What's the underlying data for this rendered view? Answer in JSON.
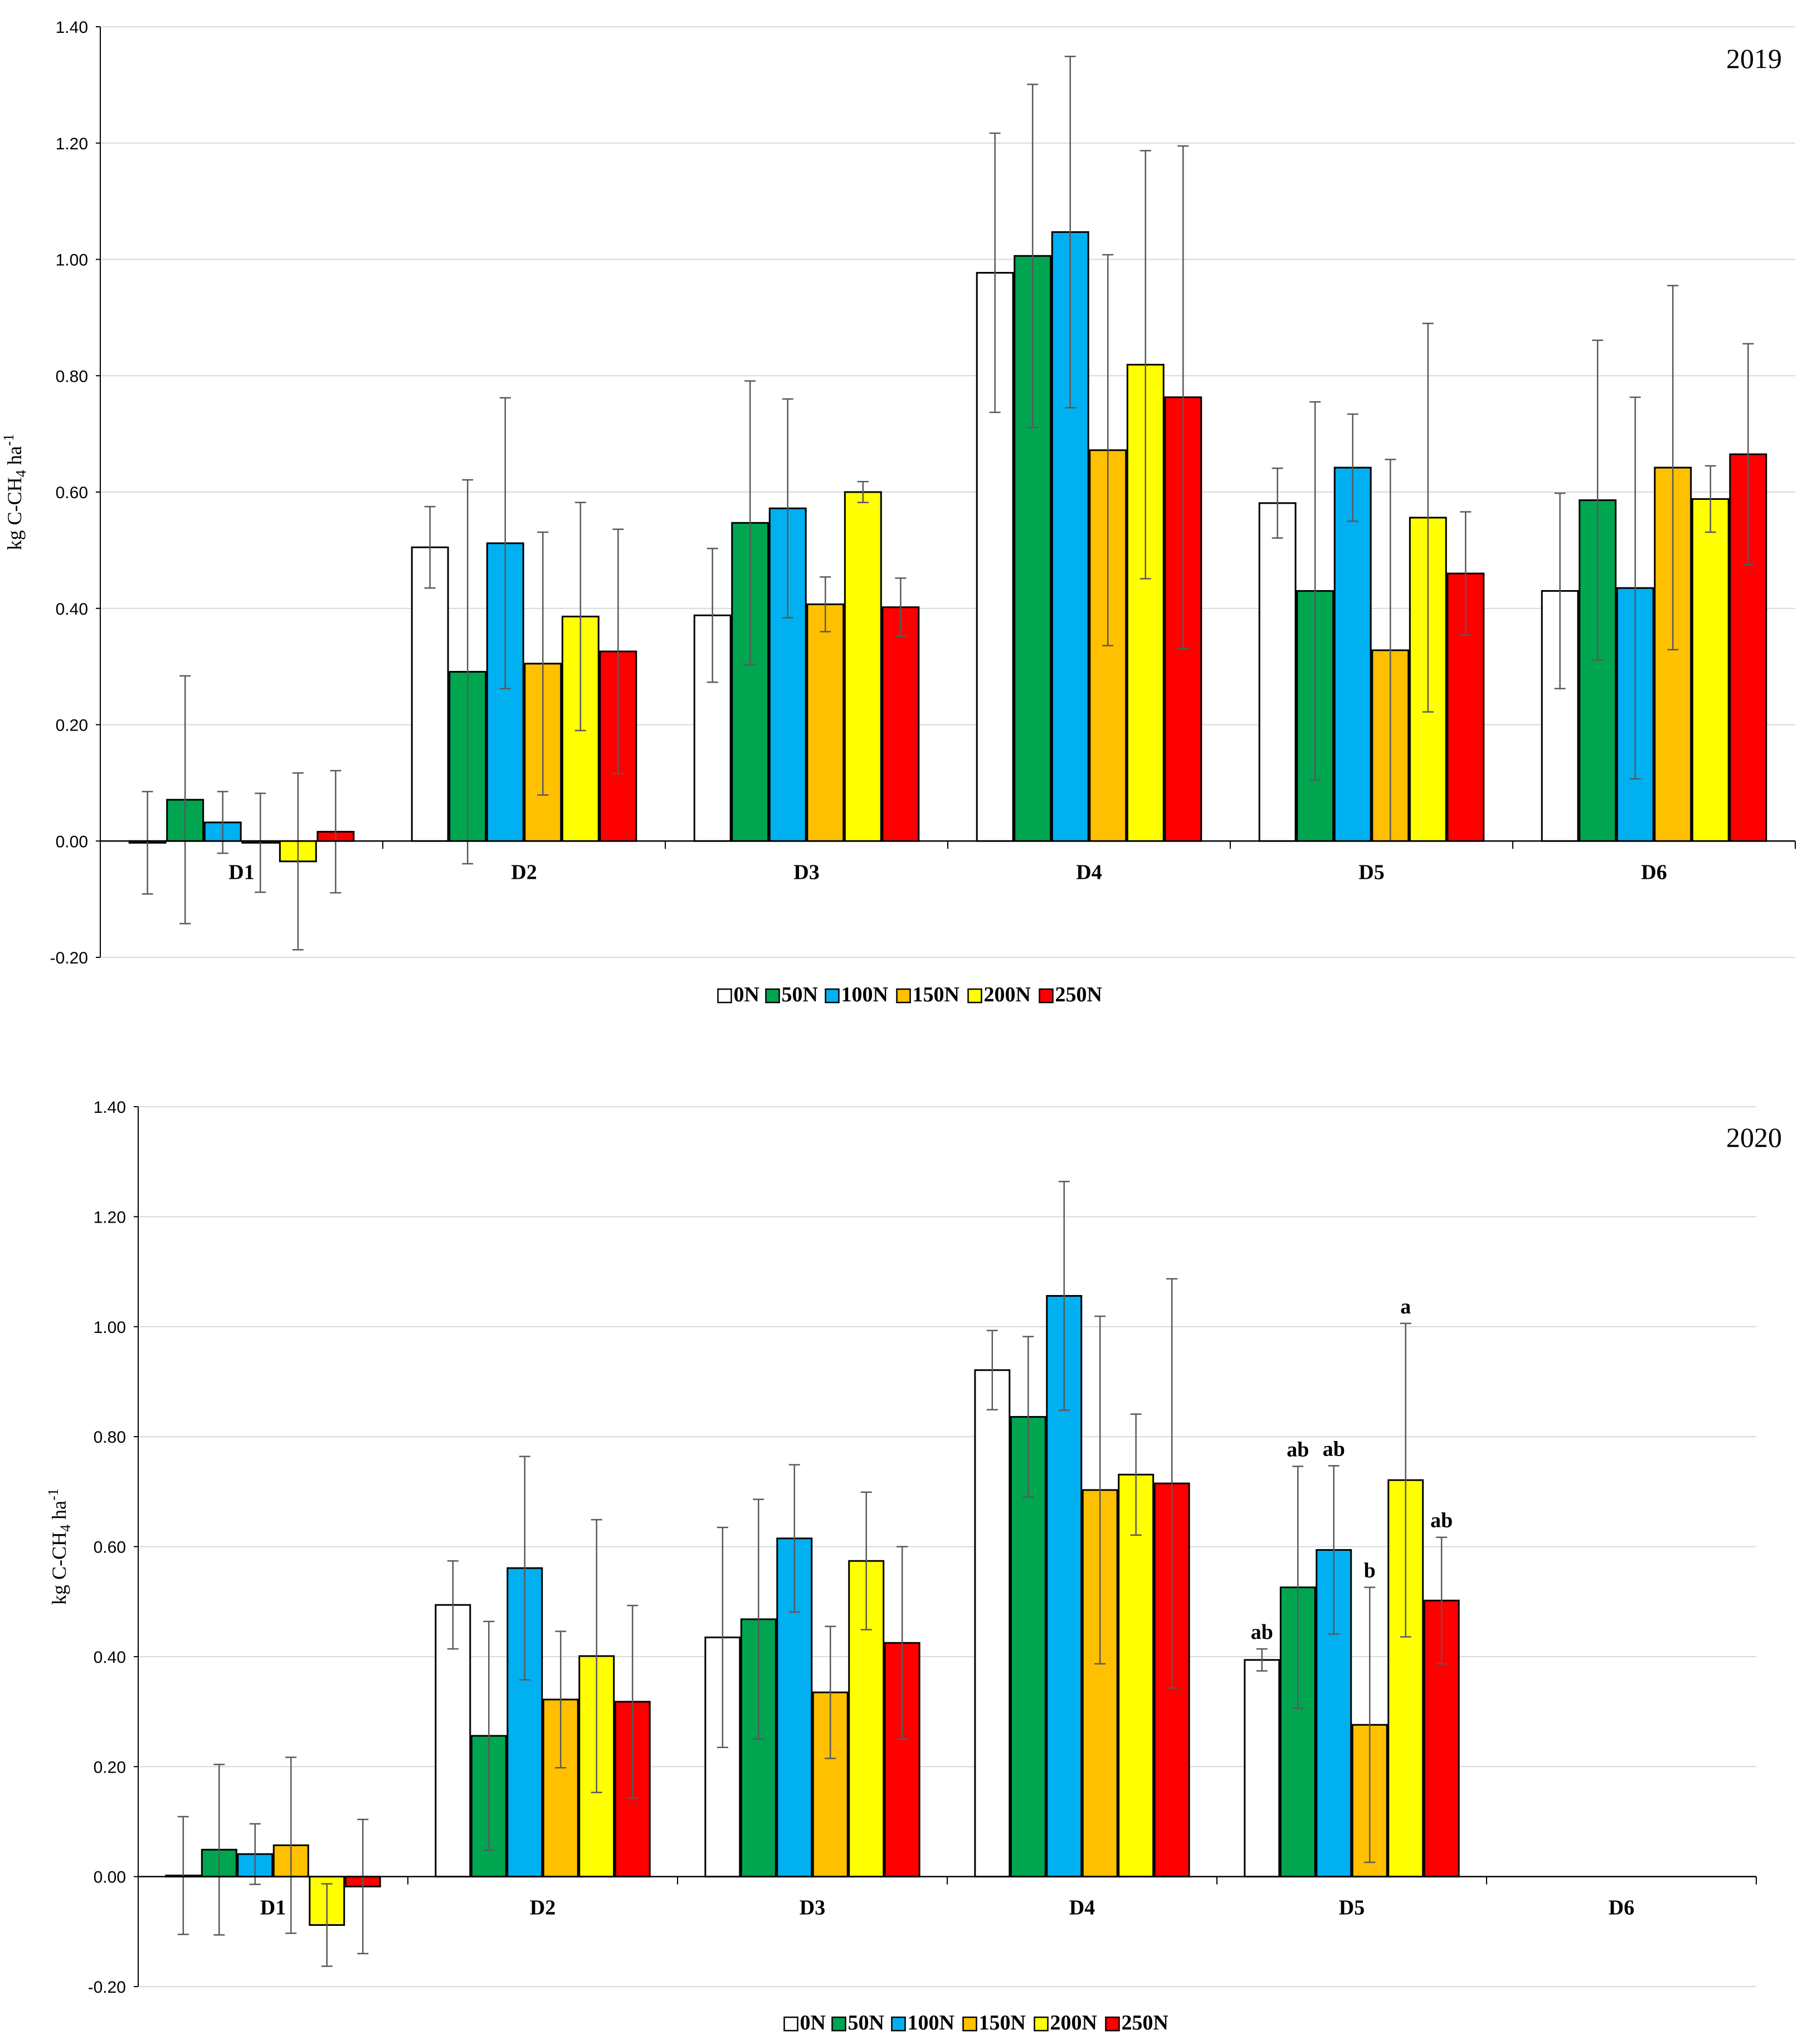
{
  "colors": {
    "0N": "#ffffff",
    "50N": "#00a550",
    "100N": "#00b0f0",
    "150N": "#ffc000",
    "200N": "#ffff00",
    "250N": "#ff0000",
    "grid": "#d9d9d9",
    "errorbar": "#595959"
  },
  "chart_data": [
    {
      "type": "bar",
      "title": "2019",
      "ylabel": "kg C-CH4 ha-1",
      "ylabel_parts": {
        "main": "kg C-CH",
        "sub": "4",
        "unit": " ha",
        "sup": "-1"
      },
      "ylim": [
        -0.2,
        1.4
      ],
      "yticks": [
        "-0.20",
        "0.00",
        "0.20",
        "0.40",
        "0.60",
        "0.80",
        "1.00",
        "1.20",
        "1.40"
      ],
      "ytick_values": [
        -0.2,
        0.0,
        0.2,
        0.4,
        0.6,
        0.8,
        1.0,
        1.2,
        1.4
      ],
      "categories": [
        "D1",
        "D2",
        "D3",
        "D4",
        "D5",
        "D6"
      ],
      "series": [
        {
          "name": "0N",
          "values": [
            -0.003,
            0.505,
            0.388,
            0.977,
            0.581,
            0.43
          ],
          "errors": [
            0.088,
            0.07,
            0.115,
            0.24,
            0.06,
            0.168
          ]
        },
        {
          "name": "50N",
          "values": [
            0.071,
            0.291,
            0.547,
            1.006,
            0.43,
            0.586
          ],
          "errors": [
            0.213,
            0.33,
            0.244,
            0.295,
            0.325,
            0.275
          ]
        },
        {
          "name": "100N",
          "values": [
            0.032,
            0.512,
            0.572,
            1.047,
            0.642,
            0.435
          ],
          "errors": [
            0.053,
            0.25,
            0.188,
            0.302,
            0.092,
            0.328
          ]
        },
        {
          "name": "150N",
          "values": [
            -0.003,
            0.305,
            0.407,
            0.672,
            0.328,
            0.642
          ],
          "errors": [
            0.085,
            0.226,
            0.047,
            0.336,
            0.328,
            0.313
          ]
        },
        {
          "name": "200N",
          "values": [
            -0.035,
            0.386,
            0.6,
            0.819,
            0.556,
            0.588
          ],
          "errors": [
            0.152,
            0.196,
            0.018,
            0.368,
            0.334,
            0.057
          ]
        },
        {
          "name": "250N",
          "values": [
            0.016,
            0.326,
            0.402,
            0.763,
            0.46,
            0.665
          ],
          "errors": [
            0.105,
            0.21,
            0.05,
            0.432,
            0.106,
            0.19
          ]
        }
      ],
      "labels": null
    },
    {
      "type": "bar",
      "title": "2020",
      "ylabel": "kg C-CH4 ha-1",
      "ylabel_parts": {
        "main": "kg C-CH",
        "sub": "4",
        "unit": " ha",
        "sup": "-1"
      },
      "ylim": [
        -0.2,
        1.4
      ],
      "yticks": [
        "-0.20",
        "0.00",
        "0.20",
        "0.40",
        "0.60",
        "0.80",
        "1.00",
        "1.20",
        "1.40"
      ],
      "ytick_values": [
        -0.2,
        0.0,
        0.2,
        0.4,
        0.6,
        0.8,
        1.0,
        1.2,
        1.4
      ],
      "categories": [
        "D1",
        "D2",
        "D3",
        "D4",
        "D5",
        "D6"
      ],
      "series": [
        {
          "name": "0N",
          "values": [
            0.002,
            0.494,
            0.435,
            0.921,
            0.394,
            null
          ],
          "errors": [
            0.107,
            0.08,
            0.2,
            0.072,
            0.02,
            null
          ]
        },
        {
          "name": "50N",
          "values": [
            0.049,
            0.256,
            0.468,
            0.836,
            0.526,
            null
          ],
          "errors": [
            0.155,
            0.208,
            0.218,
            0.146,
            0.22,
            null
          ]
        },
        {
          "name": "100N",
          "values": [
            0.041,
            0.561,
            0.615,
            1.056,
            0.594,
            null
          ],
          "errors": [
            0.055,
            0.203,
            0.134,
            0.208,
            0.153,
            null
          ]
        },
        {
          "name": "150N",
          "values": [
            0.057,
            0.322,
            0.335,
            0.703,
            0.276,
            null
          ],
          "errors": [
            0.16,
            0.124,
            0.12,
            0.316,
            0.25,
            null
          ]
        },
        {
          "name": "200N",
          "values": [
            -0.088,
            0.401,
            0.574,
            0.731,
            0.721,
            null
          ],
          "errors": [
            0.075,
            0.248,
            0.125,
            0.11,
            0.285,
            null
          ]
        },
        {
          "name": "250N",
          "values": [
            -0.018,
            0.318,
            0.425,
            0.715,
            0.502,
            null
          ],
          "errors": [
            0.122,
            0.175,
            0.175,
            0.372,
            0.115,
            null
          ]
        }
      ],
      "labels": {
        "category": "D5",
        "values": [
          "ab",
          "ab",
          "ab",
          "b",
          "a",
          "ab"
        ]
      }
    }
  ],
  "legend": [
    "0N",
    "50N",
    "100N",
    "150N",
    "200N",
    "250N"
  ]
}
